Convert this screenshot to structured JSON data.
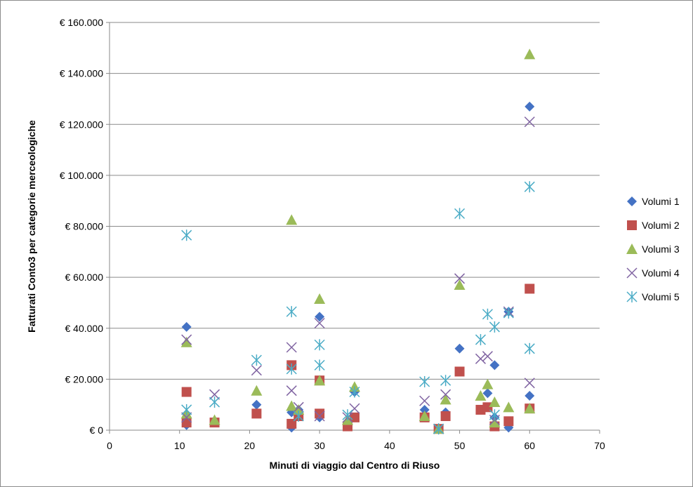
{
  "chart_data": {
    "type": "scatter",
    "title": "",
    "xlabel": "Minuti di viaggio dal Centro di Riuso",
    "ylabel": "Fatturati Conto3 per categorie merceologiche",
    "xlim": [
      0,
      70
    ],
    "ylim": [
      0,
      160000
    ],
    "x_ticks": [
      0,
      10,
      20,
      30,
      40,
      50,
      60,
      70
    ],
    "x_tick_labels": [
      "0",
      "10",
      "20",
      "30",
      "40",
      "50",
      "60",
      "70"
    ],
    "y_ticks": [
      0,
      20000,
      40000,
      60000,
      80000,
      100000,
      120000,
      140000,
      160000
    ],
    "y_tick_labels": [
      "€ 0",
      "€ 20.000",
      "€ 40.000",
      "€ 60.000",
      "€ 80.000",
      "€ 100.000",
      "€ 120.000",
      "€ 140.000",
      "€ 160.000"
    ],
    "grid": "horizontal",
    "legend_position": "right",
    "series": [
      {
        "name": "Volumi 1",
        "marker": "diamond",
        "color": "#4472C4",
        "points": [
          [
            11,
            40500
          ],
          [
            11,
            5000
          ],
          [
            11,
            2000
          ],
          [
            21,
            10000
          ],
          [
            26,
            1000
          ],
          [
            26,
            7000
          ],
          [
            27,
            8000
          ],
          [
            30,
            44500
          ],
          [
            30,
            5000
          ],
          [
            34,
            3000
          ],
          [
            35,
            15000
          ],
          [
            45,
            8000
          ],
          [
            47,
            500
          ],
          [
            48,
            7000
          ],
          [
            50,
            32000
          ],
          [
            54,
            14500
          ],
          [
            55,
            25500
          ],
          [
            55,
            5000
          ],
          [
            57,
            1000
          ],
          [
            57,
            46500
          ],
          [
            60,
            127000
          ],
          [
            60,
            13500
          ]
        ]
      },
      {
        "name": "Volumi 2",
        "marker": "square",
        "color": "#C0504D",
        "points": [
          [
            11,
            15000
          ],
          [
            11,
            3000
          ],
          [
            15,
            3000
          ],
          [
            21,
            6500
          ],
          [
            26,
            25500
          ],
          [
            26,
            2500
          ],
          [
            27,
            5500
          ],
          [
            30,
            6500
          ],
          [
            30,
            19500
          ],
          [
            34,
            1500
          ],
          [
            35,
            5000
          ],
          [
            45,
            5000
          ],
          [
            47,
            500
          ],
          [
            48,
            5500
          ],
          [
            50,
            23000
          ],
          [
            53,
            8000
          ],
          [
            54,
            9000
          ],
          [
            55,
            1500
          ],
          [
            57,
            3500
          ],
          [
            60,
            55500
          ],
          [
            60,
            8500
          ]
        ]
      },
      {
        "name": "Volumi 3",
        "marker": "triangle",
        "color": "#9BBB59",
        "points": [
          [
            11,
            34500
          ],
          [
            11,
            6500
          ],
          [
            15,
            4000
          ],
          [
            21,
            15500
          ],
          [
            26,
            82500
          ],
          [
            26,
            9500
          ],
          [
            27,
            8000
          ],
          [
            30,
            51500
          ],
          [
            30,
            19500
          ],
          [
            34,
            4000
          ],
          [
            35,
            17000
          ],
          [
            45,
            5500
          ],
          [
            47,
            500
          ],
          [
            48,
            12000
          ],
          [
            50,
            57000
          ],
          [
            53,
            13500
          ],
          [
            54,
            18000
          ],
          [
            55,
            11000
          ],
          [
            55,
            3000
          ],
          [
            57,
            9000
          ],
          [
            60,
            147500
          ],
          [
            60,
            8500
          ]
        ]
      },
      {
        "name": "Volumi 4",
        "marker": "x",
        "color": "#8064A2",
        "points": [
          [
            11,
            35500
          ],
          [
            11,
            5000
          ],
          [
            15,
            14000
          ],
          [
            21,
            23500
          ],
          [
            26,
            32500
          ],
          [
            26,
            15500
          ],
          [
            27,
            9000
          ],
          [
            30,
            42000
          ],
          [
            30,
            5500
          ],
          [
            34,
            5000
          ],
          [
            35,
            8500
          ],
          [
            45,
            11500
          ],
          [
            47,
            500
          ],
          [
            48,
            14000
          ],
          [
            50,
            59500
          ],
          [
            53,
            28000
          ],
          [
            54,
            29000
          ],
          [
            55,
            4000
          ],
          [
            57,
            46500
          ],
          [
            60,
            121000
          ],
          [
            60,
            18500
          ]
        ]
      },
      {
        "name": "Volumi 5",
        "marker": "asterisk",
        "color": "#4BACC6",
        "points": [
          [
            11,
            76500
          ],
          [
            11,
            8000
          ],
          [
            15,
            11000
          ],
          [
            21,
            27500
          ],
          [
            26,
            46500
          ],
          [
            26,
            24000
          ],
          [
            27,
            5500
          ],
          [
            30,
            33500
          ],
          [
            30,
            25500
          ],
          [
            34,
            6000
          ],
          [
            35,
            15000
          ],
          [
            45,
            19000
          ],
          [
            47,
            500
          ],
          [
            48,
            19500
          ],
          [
            50,
            85000
          ],
          [
            53,
            35500
          ],
          [
            54,
            45500
          ],
          [
            55,
            40500
          ],
          [
            55,
            6000
          ],
          [
            57,
            46000
          ],
          [
            60,
            95500
          ],
          [
            60,
            32000
          ]
        ]
      }
    ]
  }
}
